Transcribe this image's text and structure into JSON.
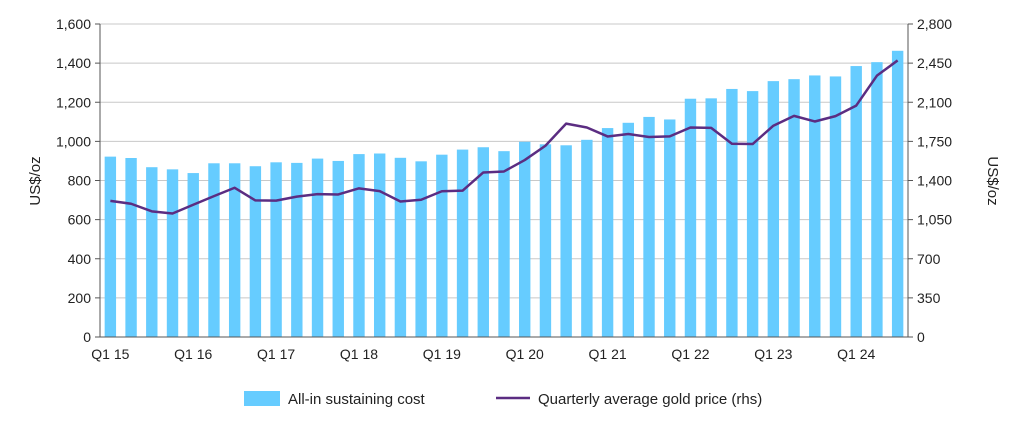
{
  "chart_data": {
    "type": "bar",
    "title": "",
    "categories": [
      "Q1 15",
      "Q2 15",
      "Q3 15",
      "Q4 15",
      "Q1 16",
      "Q2 16",
      "Q3 16",
      "Q4 16",
      "Q1 17",
      "Q2 17",
      "Q3 17",
      "Q4 17",
      "Q1 18",
      "Q2 18",
      "Q3 18",
      "Q4 18",
      "Q1 19",
      "Q2 19",
      "Q3 19",
      "Q4 19",
      "Q1 20",
      "Q2 20",
      "Q3 20",
      "Q4 20",
      "Q1 21",
      "Q2 21",
      "Q3 21",
      "Q4 21",
      "Q1 22",
      "Q2 22",
      "Q3 22",
      "Q4 22",
      "Q1 23",
      "Q2 23",
      "Q3 23",
      "Q4 23",
      "Q1 24",
      "Q2 24",
      "Q3 24"
    ],
    "x_tick_labels": [
      "Q1 15",
      "Q1 16",
      "Q1 17",
      "Q1 18",
      "Q1 19",
      "Q1 20",
      "Q1 21",
      "Q1 22",
      "Q1 23",
      "Q1 24"
    ],
    "ylabel": "US$/oz",
    "ylabel_right": "US$/oz",
    "ylim": [
      0,
      1600
    ],
    "ylim_right": [
      0,
      2800
    ],
    "yticks": [
      0,
      200,
      400,
      600,
      800,
      1000,
      1200,
      1400,
      1600
    ],
    "yticks_labels": [
      "0",
      "200",
      "400",
      "600",
      "800",
      "1,000",
      "1,200",
      "1,400",
      "1,600"
    ],
    "yticks_right": [
      0,
      350,
      700,
      1050,
      1400,
      1750,
      2100,
      2450,
      2800
    ],
    "yticks_right_labels": [
      "0",
      "350",
      "700",
      "1,050",
      "1,400",
      "1,750",
      "2,100",
      "2,450",
      "2,800"
    ],
    "grid": true,
    "legend_position": "bottom-center",
    "series": [
      {
        "name": "All-in sustaining cost",
        "type": "bar",
        "axis": "left",
        "color": "#66ccff",
        "values": [
          922,
          915,
          868,
          857,
          838,
          888,
          888,
          873,
          893,
          890,
          912,
          900,
          935,
          938,
          916,
          898,
          932,
          958,
          970,
          950,
          998,
          985,
          980,
          1008,
          1068,
          1095,
          1125,
          1112,
          1218,
          1220,
          1268,
          1257,
          1308,
          1318,
          1337,
          1332,
          1385,
          1405,
          1463
        ]
      },
      {
        "name": "Quarterly average gold price (rhs)",
        "type": "line",
        "axis": "right",
        "color": "#5b2d82",
        "values": [
          1218,
          1192,
          1124,
          1105,
          1183,
          1260,
          1335,
          1222,
          1220,
          1256,
          1278,
          1275,
          1330,
          1305,
          1212,
          1228,
          1304,
          1309,
          1472,
          1481,
          1583,
          1711,
          1909,
          1874,
          1794,
          1816,
          1789,
          1795,
          1874,
          1871,
          1729,
          1726,
          1890,
          1978,
          1928,
          1976,
          2070,
          2338,
          2474
        ]
      }
    ]
  }
}
